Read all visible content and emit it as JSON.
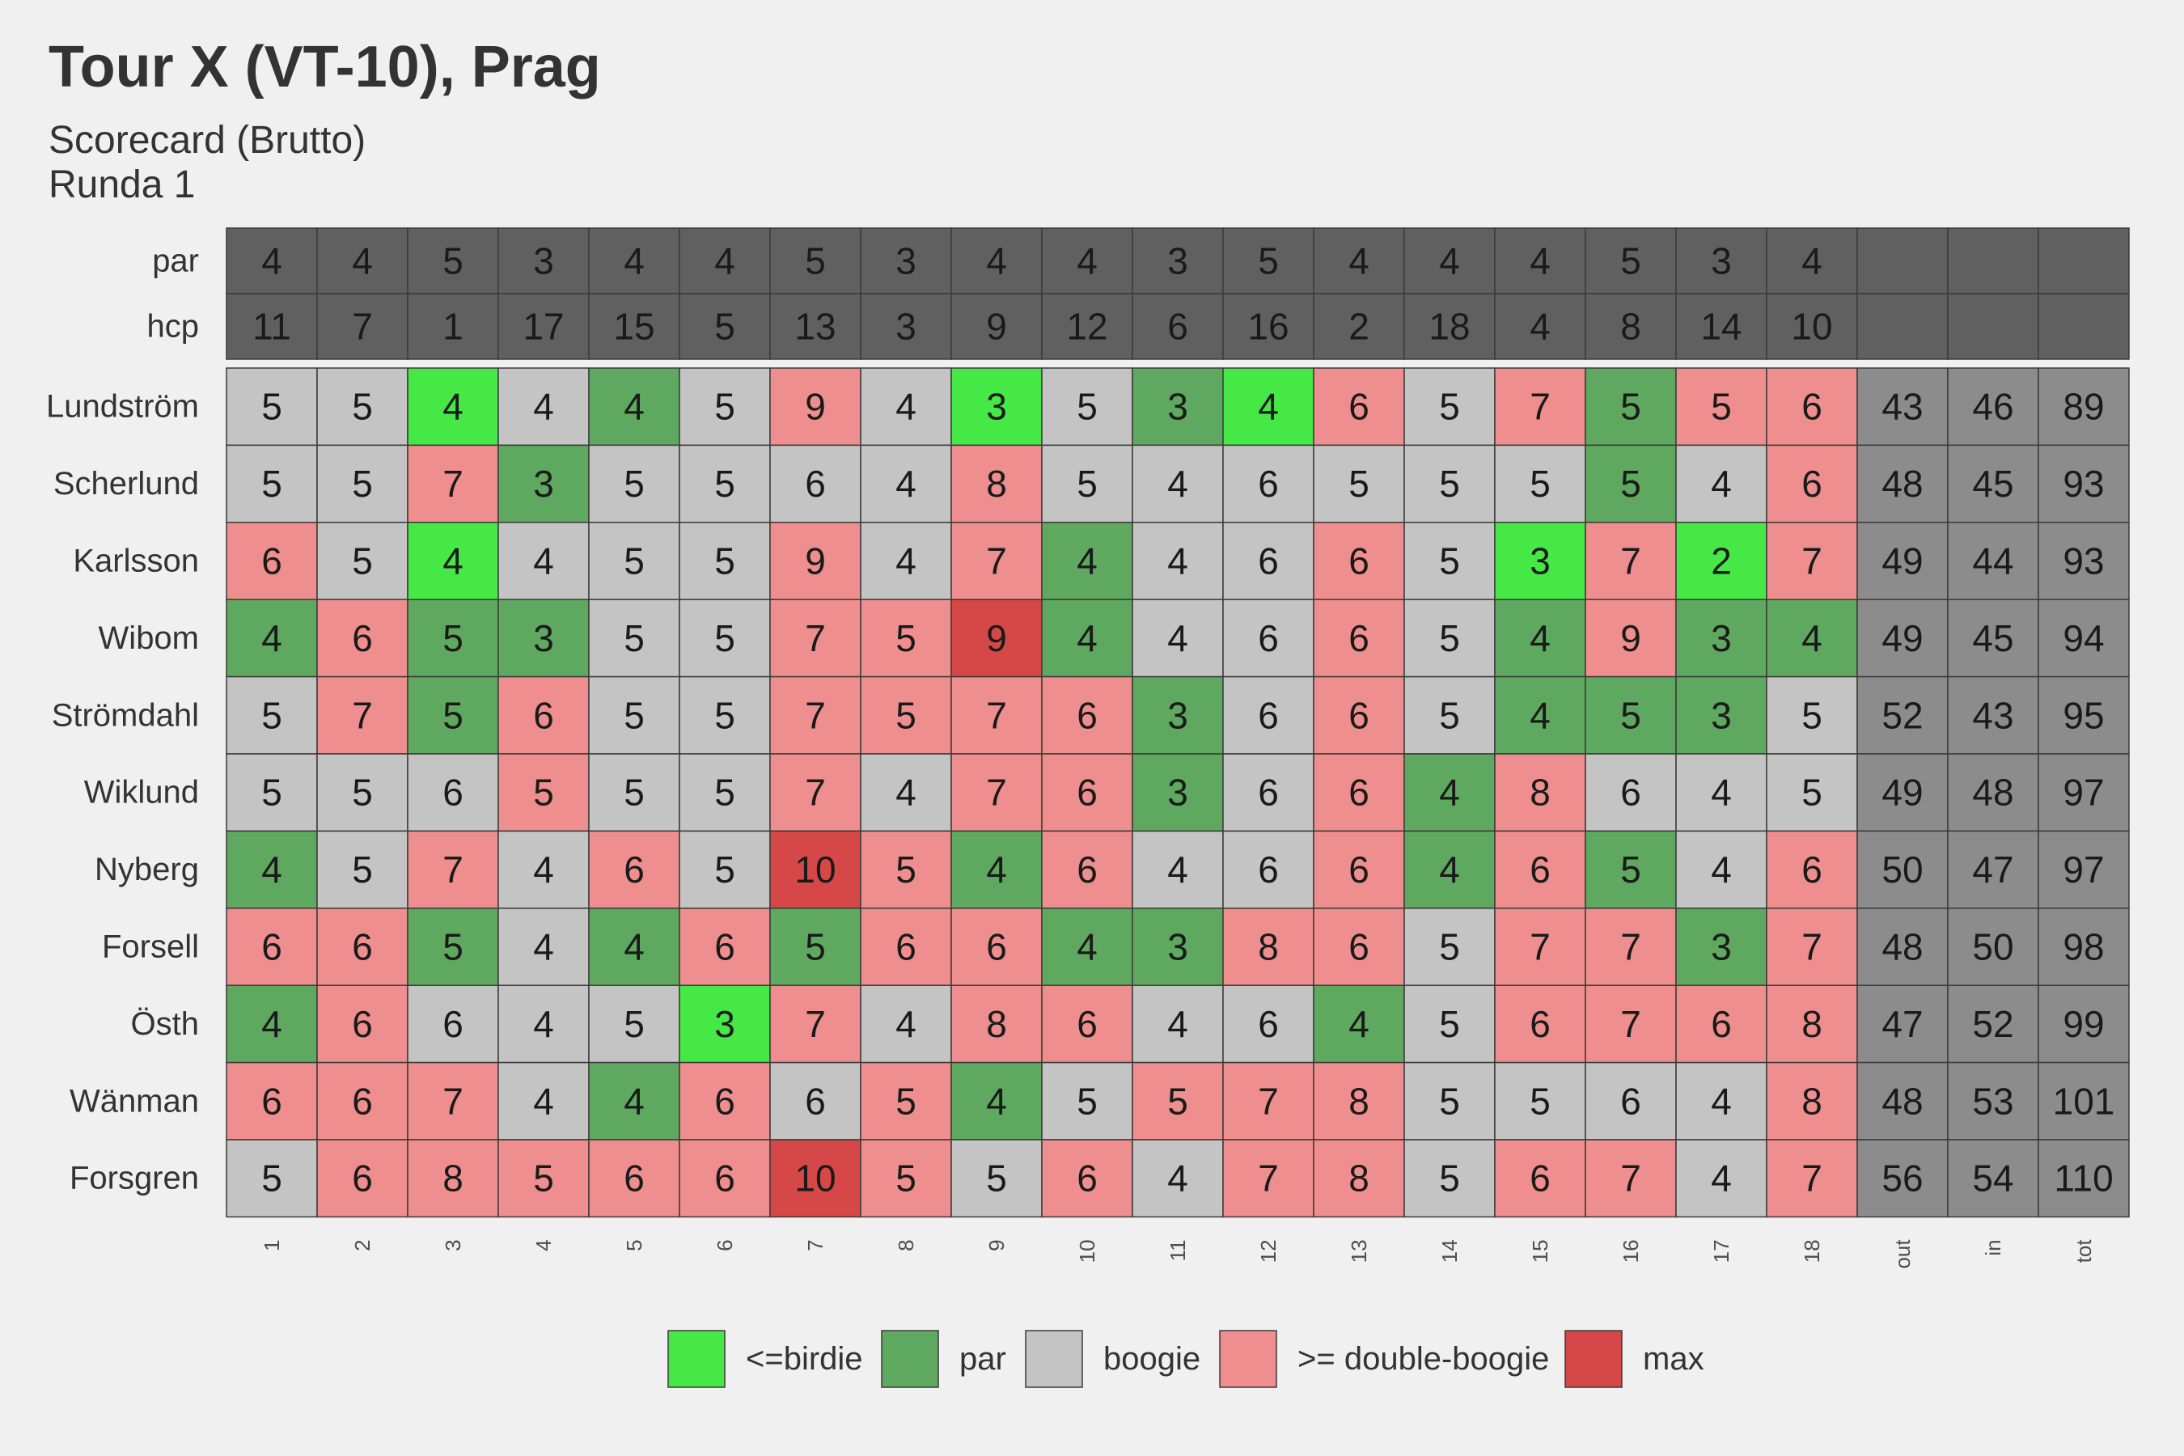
{
  "title": "Tour X (VT-10), Prag",
  "subtitle_line1": "Scorecard (Brutto)",
  "subtitle_line2": "Runda 1",
  "colors": {
    "background": "#f0f0f0",
    "header_fill": "#606060",
    "total_fill": "#8c8c8c",
    "birdie": "#46e846",
    "par": "#5fa85f",
    "boogie": "#c4c4c4",
    "double_boogie": "#ee8e8e",
    "max": "#d64848"
  },
  "chart_data": {
    "type": "table",
    "columns": [
      "1",
      "2",
      "3",
      "4",
      "5",
      "6",
      "7",
      "8",
      "9",
      "10",
      "11",
      "12",
      "13",
      "14",
      "15",
      "16",
      "17",
      "18",
      "out",
      "in",
      "tot"
    ],
    "header_rows": [
      {
        "label": "par",
        "values": [
          "4",
          "4",
          "5",
          "3",
          "4",
          "4",
          "5",
          "3",
          "4",
          "4",
          "3",
          "5",
          "4",
          "4",
          "4",
          "5",
          "3",
          "4",
          "",
          "",
          ""
        ]
      },
      {
        "label": "hcp",
        "values": [
          "11",
          "7",
          "1",
          "17",
          "15",
          "5",
          "13",
          "3",
          "9",
          "12",
          "6",
          "16",
          "2",
          "18",
          "4",
          "8",
          "14",
          "10",
          "",
          "",
          ""
        ]
      }
    ],
    "players": [
      {
        "name": "Lundström",
        "scores": [
          "5",
          "5",
          "4",
          "4",
          "4",
          "5",
          "9",
          "4",
          "3",
          "5",
          "3",
          "4",
          "6",
          "5",
          "7",
          "5",
          "5",
          "6"
        ],
        "cats": [
          "b",
          "b",
          "bi",
          "b",
          "p",
          "b",
          "d",
          "b",
          "bi",
          "b",
          "p",
          "bi",
          "d",
          "b",
          "d",
          "p",
          "d",
          "d"
        ],
        "out": "43",
        "in": "46",
        "tot": "89"
      },
      {
        "name": "Scherlund",
        "scores": [
          "5",
          "5",
          "7",
          "3",
          "5",
          "5",
          "6",
          "4",
          "8",
          "5",
          "4",
          "6",
          "5",
          "5",
          "5",
          "5",
          "4",
          "6"
        ],
        "cats": [
          "b",
          "b",
          "d",
          "p",
          "b",
          "b",
          "b",
          "b",
          "d",
          "b",
          "b",
          "b",
          "b",
          "b",
          "b",
          "p",
          "b",
          "d"
        ],
        "out": "48",
        "in": "45",
        "tot": "93"
      },
      {
        "name": "Karlsson",
        "scores": [
          "6",
          "5",
          "4",
          "4",
          "5",
          "5",
          "9",
          "4",
          "7",
          "4",
          "4",
          "6",
          "6",
          "5",
          "3",
          "7",
          "2",
          "7"
        ],
        "cats": [
          "d",
          "b",
          "bi",
          "b",
          "b",
          "b",
          "d",
          "b",
          "d",
          "p",
          "b",
          "b",
          "d",
          "b",
          "bi",
          "d",
          "bi",
          "d"
        ],
        "out": "49",
        "in": "44",
        "tot": "93"
      },
      {
        "name": "Wibom",
        "scores": [
          "4",
          "6",
          "5",
          "3",
          "5",
          "5",
          "7",
          "5",
          "9",
          "4",
          "4",
          "6",
          "6",
          "5",
          "4",
          "9",
          "3",
          "4"
        ],
        "cats": [
          "p",
          "d",
          "p",
          "p",
          "b",
          "b",
          "d",
          "d",
          "m",
          "p",
          "b",
          "b",
          "d",
          "b",
          "p",
          "d",
          "p",
          "p"
        ],
        "out": "49",
        "in": "45",
        "tot": "94"
      },
      {
        "name": "Strömdahl",
        "scores": [
          "5",
          "7",
          "5",
          "6",
          "5",
          "5",
          "7",
          "5",
          "7",
          "6",
          "3",
          "6",
          "6",
          "5",
          "4",
          "5",
          "3",
          "5"
        ],
        "cats": [
          "b",
          "d",
          "p",
          "d",
          "b",
          "b",
          "d",
          "d",
          "d",
          "d",
          "p",
          "b",
          "d",
          "b",
          "p",
          "p",
          "p",
          "b"
        ],
        "out": "52",
        "in": "43",
        "tot": "95"
      },
      {
        "name": "Wiklund",
        "scores": [
          "5",
          "5",
          "6",
          "5",
          "5",
          "5",
          "7",
          "4",
          "7",
          "6",
          "3",
          "6",
          "6",
          "4",
          "8",
          "6",
          "4",
          "5"
        ],
        "cats": [
          "b",
          "b",
          "b",
          "d",
          "b",
          "b",
          "d",
          "b",
          "d",
          "d",
          "p",
          "b",
          "d",
          "p",
          "d",
          "b",
          "b",
          "b"
        ],
        "out": "49",
        "in": "48",
        "tot": "97"
      },
      {
        "name": "Nyberg",
        "scores": [
          "4",
          "5",
          "7",
          "4",
          "6",
          "5",
          "10",
          "5",
          "4",
          "6",
          "4",
          "6",
          "6",
          "4",
          "6",
          "5",
          "4",
          "6"
        ],
        "cats": [
          "p",
          "b",
          "d",
          "b",
          "d",
          "b",
          "m",
          "d",
          "p",
          "d",
          "b",
          "b",
          "d",
          "p",
          "d",
          "p",
          "b",
          "d"
        ],
        "out": "50",
        "in": "47",
        "tot": "97"
      },
      {
        "name": "Forsell",
        "scores": [
          "6",
          "6",
          "5",
          "4",
          "4",
          "6",
          "5",
          "6",
          "6",
          "4",
          "3",
          "8",
          "6",
          "5",
          "7",
          "7",
          "3",
          "7"
        ],
        "cats": [
          "d",
          "d",
          "p",
          "b",
          "p",
          "d",
          "p",
          "d",
          "d",
          "p",
          "p",
          "d",
          "d",
          "b",
          "d",
          "d",
          "p",
          "d"
        ],
        "out": "48",
        "in": "50",
        "tot": "98"
      },
      {
        "name": "Östh",
        "scores": [
          "4",
          "6",
          "6",
          "4",
          "5",
          "3",
          "7",
          "4",
          "8",
          "6",
          "4",
          "6",
          "4",
          "5",
          "6",
          "7",
          "6",
          "8"
        ],
        "cats": [
          "p",
          "d",
          "b",
          "b",
          "b",
          "bi",
          "d",
          "b",
          "d",
          "d",
          "b",
          "b",
          "p",
          "b",
          "d",
          "d",
          "d",
          "d"
        ],
        "out": "47",
        "in": "52",
        "tot": "99"
      },
      {
        "name": "Wänman",
        "scores": [
          "6",
          "6",
          "7",
          "4",
          "4",
          "6",
          "6",
          "5",
          "4",
          "5",
          "5",
          "7",
          "8",
          "5",
          "5",
          "6",
          "4",
          "8"
        ],
        "cats": [
          "d",
          "d",
          "d",
          "b",
          "p",
          "d",
          "b",
          "d",
          "p",
          "b",
          "d",
          "d",
          "d",
          "b",
          "b",
          "b",
          "b",
          "d"
        ],
        "out": "48",
        "in": "53",
        "tot": "101"
      },
      {
        "name": "Forsgren",
        "scores": [
          "5",
          "6",
          "8",
          "5",
          "6",
          "6",
          "10",
          "5",
          "5",
          "6",
          "4",
          "7",
          "8",
          "5",
          "6",
          "7",
          "4",
          "7"
        ],
        "cats": [
          "b",
          "d",
          "d",
          "d",
          "d",
          "d",
          "m",
          "d",
          "b",
          "d",
          "b",
          "d",
          "d",
          "b",
          "d",
          "d",
          "b",
          "d"
        ],
        "out": "56",
        "in": "54",
        "tot": "110"
      }
    ],
    "legend": [
      {
        "key": "bi",
        "label": "<=birdie"
      },
      {
        "key": "p",
        "label": "par"
      },
      {
        "key": "b",
        "label": "boogie"
      },
      {
        "key": "d",
        "label": ">= double-boogie"
      },
      {
        "key": "m",
        "label": "max"
      }
    ],
    "legend_position": "bottom"
  }
}
